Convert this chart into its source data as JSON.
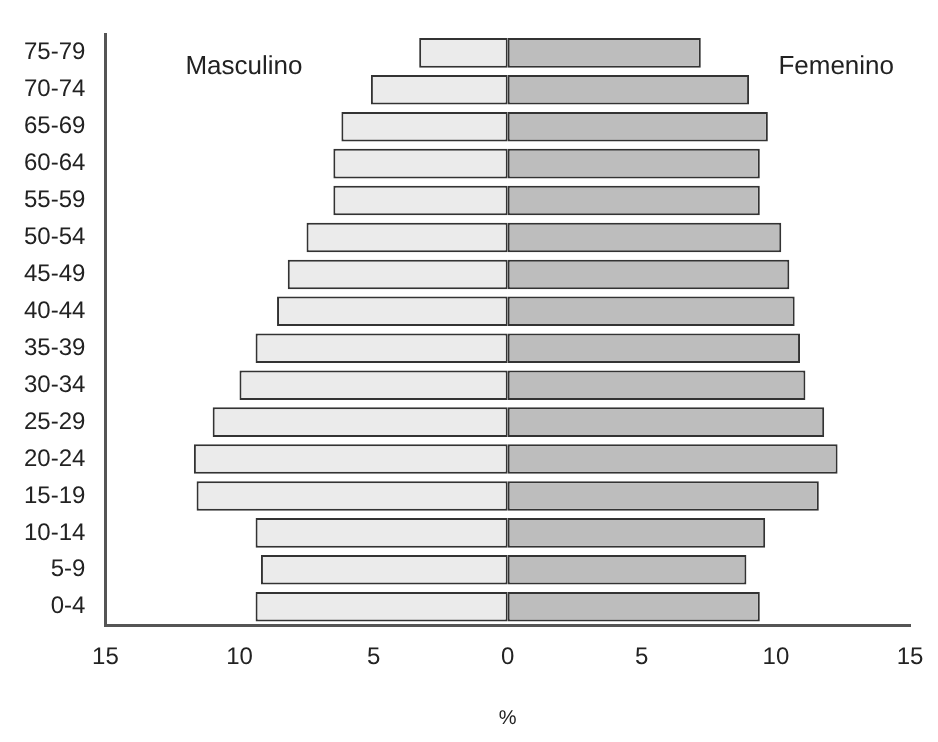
{
  "chart_data": {
    "type": "bar",
    "orientation": "horizontal",
    "stacked": true,
    "xlabel": "%",
    "categories": [
      "75-79",
      "70-74",
      "65-69",
      "60-64",
      "55-59",
      "50-54",
      "45-49",
      "40-44",
      "35-39",
      "30-34",
      "25-29",
      "20-24",
      "15-19",
      "10-14",
      "5-9",
      "0-4"
    ],
    "series": [
      {
        "name": "Masculino",
        "color": "#ebebeb",
        "values": [
          -3.3,
          -5.1,
          -6.2,
          -6.5,
          -6.5,
          -7.5,
          -8.2,
          -8.6,
          -9.4,
          -10.0,
          -11.0,
          -11.7,
          -11.6,
          -9.4,
          -9.2,
          -9.4
        ]
      },
      {
        "name": "Femenino",
        "color": "#bdbdbd",
        "values": [
          7.2,
          9.0,
          9.7,
          9.4,
          9.4,
          10.2,
          10.5,
          10.7,
          10.9,
          11.1,
          11.8,
          12.3,
          11.6,
          9.6,
          8.9,
          9.4
        ]
      }
    ],
    "xlim": [
      -15,
      15
    ],
    "xticks": [
      {
        "value": -15,
        "label": "15"
      },
      {
        "value": -10,
        "label": "10"
      },
      {
        "value": -5,
        "label": "5"
      },
      0,
      5,
      10,
      15
    ],
    "grid": false,
    "legend": false
  }
}
